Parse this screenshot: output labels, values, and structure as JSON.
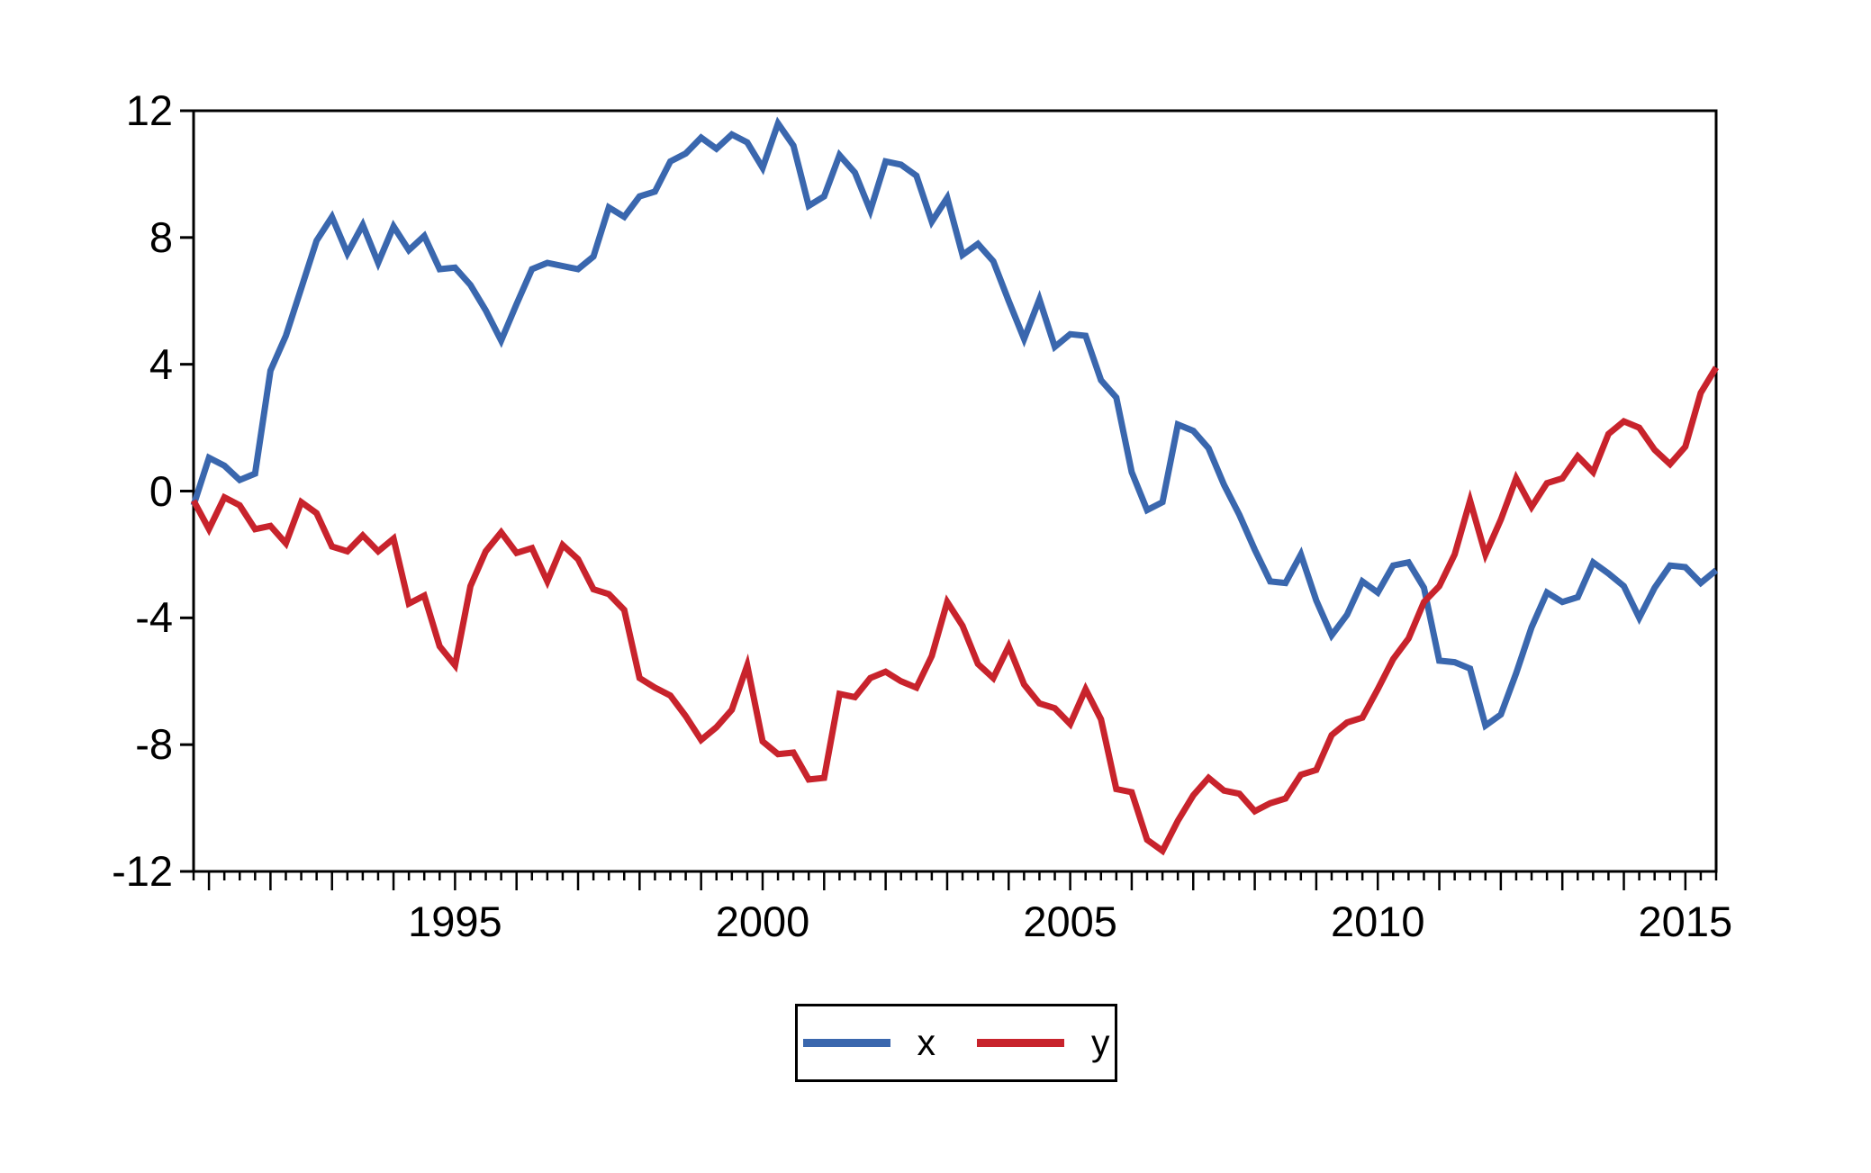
{
  "figure": {
    "background_color": "#ffffff",
    "axis_color": "#000000",
    "text_color": "#000000"
  },
  "chart_data": {
    "type": "line",
    "title": "",
    "xlabel": "",
    "ylabel": "",
    "grid": false,
    "legend_position": "bottom-center",
    "x_unit": "quarterly-years",
    "x_range": [
      1990.75,
      2015.5
    ],
    "y_range": [
      -12,
      12
    ],
    "y_ticks": [
      12,
      8,
      4,
      0,
      -4,
      -8,
      -12
    ],
    "y_tick_labels": [
      "12",
      "8",
      "4",
      "0",
      "-4",
      "-8",
      "-12"
    ],
    "x_major_tick_first_year": 1991,
    "x_major_tick_last_year": 2015,
    "x_minor_tick_step": 0.25,
    "x_label_years": [
      1995,
      2000,
      2005,
      2010,
      2015
    ],
    "x_tick_labels": [
      "1995",
      "2000",
      "2005",
      "2010",
      "2015"
    ],
    "x_start": 1990.75,
    "x_step": 0.25,
    "series": [
      {
        "name": "x",
        "color": "#3A67AE",
        "line_width": 7,
        "values": [
          -0.45,
          1.05,
          0.8,
          0.35,
          0.55,
          3.8,
          4.9,
          6.4,
          7.9,
          8.65,
          7.5,
          8.4,
          7.2,
          8.35,
          7.6,
          8.05,
          7.0,
          7.05,
          6.5,
          5.7,
          4.75,
          5.9,
          7.0,
          7.2,
          7.1,
          7.0,
          7.4,
          8.95,
          8.65,
          9.3,
          9.45,
          10.4,
          10.65,
          11.15,
          10.8,
          11.25,
          11.0,
          10.2,
          11.6,
          10.9,
          9.0,
          9.3,
          10.6,
          10.05,
          8.85,
          10.4,
          10.3,
          9.95,
          8.5,
          9.25,
          7.45,
          7.8,
          7.25,
          6.0,
          4.8,
          6.05,
          4.55,
          4.95,
          4.9,
          3.5,
          2.95,
          0.6,
          -0.6,
          -0.35,
          2.1,
          1.9,
          1.35,
          0.2,
          -0.75,
          -1.85,
          -2.85,
          -2.9,
          -2.0,
          -3.45,
          -4.55,
          -3.9,
          -2.85,
          -3.2,
          -2.35,
          -2.25,
          -3.05,
          -5.35,
          -5.4,
          -5.6,
          -7.4,
          -7.05,
          -5.75,
          -4.3,
          -3.2,
          -3.5,
          -3.35,
          -2.25,
          -2.6,
          -3.0,
          -4.0,
          -3.05,
          -2.35,
          -2.4,
          -2.9,
          -2.5
        ]
      },
      {
        "name": "y",
        "color": "#C8232C",
        "line_width": 7,
        "values": [
          -0.3,
          -1.2,
          -0.2,
          -0.45,
          -1.2,
          -1.1,
          -1.65,
          -0.35,
          -0.7,
          -1.75,
          -1.9,
          -1.4,
          -1.9,
          -1.5,
          -3.55,
          -3.3,
          -4.9,
          -5.5,
          -3.0,
          -1.9,
          -1.3,
          -1.95,
          -1.8,
          -2.85,
          -1.7,
          -2.15,
          -3.1,
          -3.25,
          -3.75,
          -5.9,
          -6.2,
          -6.45,
          -7.1,
          -7.85,
          -7.45,
          -6.9,
          -5.5,
          -7.9,
          -8.3,
          -8.25,
          -9.1,
          -9.05,
          -6.4,
          -6.5,
          -5.9,
          -5.7,
          -6.0,
          -6.2,
          -5.2,
          -3.5,
          -4.25,
          -5.45,
          -5.9,
          -4.9,
          -6.1,
          -6.7,
          -6.85,
          -7.35,
          -6.25,
          -7.2,
          -9.4,
          -9.5,
          -11.0,
          -11.35,
          -10.4,
          -9.6,
          -9.05,
          -9.45,
          -9.55,
          -10.1,
          -9.85,
          -9.7,
          -8.95,
          -8.8,
          -7.7,
          -7.3,
          -7.15,
          -6.25,
          -5.3,
          -4.65,
          -3.5,
          -3.0,
          -2.0,
          -0.3,
          -2.0,
          -0.9,
          0.4,
          -0.5,
          0.25,
          0.4,
          1.1,
          0.6,
          1.8,
          2.2,
          2.0,
          1.3,
          0.85,
          1.4,
          3.1,
          3.9
        ]
      }
    ]
  },
  "legend": {
    "items": [
      {
        "label": "x",
        "color": "#3A67AE"
      },
      {
        "label": "y",
        "color": "#C8232C"
      }
    ]
  }
}
